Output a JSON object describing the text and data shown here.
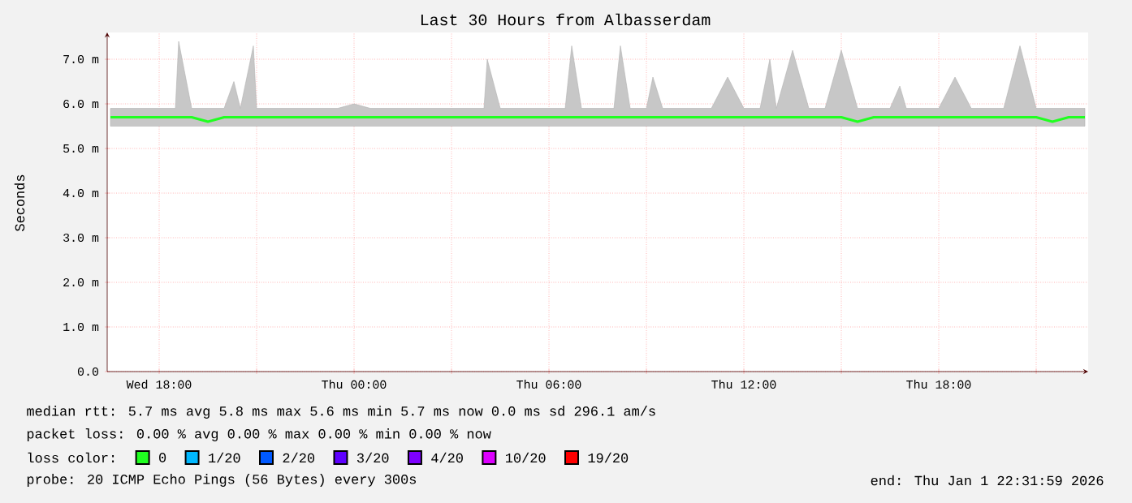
{
  "chart_data": {
    "type": "line",
    "title": "Last 30 Hours from Albasserdam",
    "ylabel": "Seconds",
    "x": [
      "2025-12-31T16:30",
      "2025-12-31T17:00",
      "2025-12-31T17:30",
      "2025-12-31T18:00",
      "2025-12-31T18:30",
      "2025-12-31T18:36",
      "2025-12-31T19:00",
      "2025-12-31T19:30",
      "2025-12-31T20:00",
      "2025-12-31T20:18",
      "2025-12-31T20:30",
      "2025-12-31T20:54",
      "2025-12-31T21:00",
      "2025-12-31T21:30",
      "2025-12-31T22:00",
      "2025-12-31T22:30",
      "2025-12-31T23:00",
      "2025-12-31T23:30",
      "2026-01-01T00:00",
      "2026-01-01T00:30",
      "2026-01-01T01:00",
      "2026-01-01T01:30",
      "2026-01-01T02:00",
      "2026-01-01T02:30",
      "2026-01-01T03:00",
      "2026-01-01T03:30",
      "2026-01-01T04:00",
      "2026-01-01T04:06",
      "2026-01-01T04:30",
      "2026-01-01T05:00",
      "2026-01-01T05:30",
      "2026-01-01T06:00",
      "2026-01-01T06:30",
      "2026-01-01T06:42",
      "2026-01-01T07:00",
      "2026-01-01T07:30",
      "2026-01-01T08:00",
      "2026-01-01T08:12",
      "2026-01-01T08:30",
      "2026-01-01T09:00",
      "2026-01-01T09:12",
      "2026-01-01T09:30",
      "2026-01-01T10:00",
      "2026-01-01T10:30",
      "2026-01-01T11:00",
      "2026-01-01T11:30",
      "2026-01-01T12:00",
      "2026-01-01T12:30",
      "2026-01-01T12:48",
      "2026-01-01T13:00",
      "2026-01-01T13:30",
      "2026-01-01T14:00",
      "2026-01-01T14:30",
      "2026-01-01T15:00",
      "2026-01-01T15:30",
      "2026-01-01T16:00",
      "2026-01-01T16:30",
      "2026-01-01T16:48",
      "2026-01-01T17:00",
      "2026-01-01T17:30",
      "2026-01-01T18:00",
      "2026-01-01T18:30",
      "2026-01-01T19:00",
      "2026-01-01T19:30",
      "2026-01-01T20:00",
      "2026-01-01T20:30",
      "2026-01-01T21:00",
      "2026-01-01T21:30",
      "2026-01-01T22:00",
      "2026-01-01T22:30"
    ],
    "xlim": [
      "2025-12-31T16:24",
      "2026-01-01T22:36"
    ],
    "xticks": [
      {
        "value": "2025-12-31T18:00",
        "label": "Wed 18:00"
      },
      {
        "value": "2025-12-31T21:00",
        "label": null
      },
      {
        "value": "2026-01-01T00:00",
        "label": "Thu 00:00"
      },
      {
        "value": "2026-01-01T03:00",
        "label": null
      },
      {
        "value": "2026-01-01T06:00",
        "label": "Thu 06:00"
      },
      {
        "value": "2026-01-01T09:00",
        "label": null
      },
      {
        "value": "2026-01-01T12:00",
        "label": "Thu 12:00"
      },
      {
        "value": "2026-01-01T15:00",
        "label": null
      },
      {
        "value": "2026-01-01T18:00",
        "label": "Thu 18:00"
      },
      {
        "value": "2026-01-01T21:00",
        "label": null
      }
    ],
    "ylim": [
      0,
      7.6
    ],
    "yticks": [
      {
        "value": 0,
        "label": "0.0"
      },
      {
        "value": 1,
        "label": "1.0 m"
      },
      {
        "value": 2,
        "label": "2.0 m"
      },
      {
        "value": 3,
        "label": "3.0 m"
      },
      {
        "value": 4,
        "label": "4.0 m"
      },
      {
        "value": 5,
        "label": "5.0 m"
      },
      {
        "value": 6,
        "label": "6.0 m"
      },
      {
        "value": 7,
        "label": "7.0 m"
      }
    ],
    "grid": true,
    "legend": "bottom",
    "legend_title": "loss color:",
    "series": [
      {
        "name": "0",
        "color": "#20ff20",
        "values": [
          5.7,
          5.7,
          5.7,
          5.7,
          5.7,
          5.7,
          5.7,
          5.6,
          5.7,
          5.7,
          5.7,
          5.7,
          5.7,
          5.7,
          5.7,
          5.7,
          5.7,
          5.7,
          5.7,
          5.7,
          5.7,
          5.7,
          5.7,
          5.7,
          5.7,
          5.7,
          5.7,
          5.7,
          5.7,
          5.7,
          5.7,
          5.7,
          5.7,
          5.7,
          5.7,
          5.7,
          5.7,
          5.7,
          5.7,
          5.7,
          5.7,
          5.7,
          5.7,
          5.7,
          5.7,
          5.7,
          5.7,
          5.7,
          5.7,
          5.7,
          5.7,
          5.7,
          5.7,
          5.7,
          5.6,
          5.7,
          5.7,
          5.7,
          5.7,
          5.7,
          5.7,
          5.7,
          5.7,
          5.7,
          5.7,
          5.7,
          5.7,
          5.6,
          5.7,
          5.7
        ],
        "lower": [
          5.5,
          5.5,
          5.5,
          5.5,
          5.5,
          5.5,
          5.5,
          5.5,
          5.5,
          5.5,
          5.5,
          5.5,
          5.5,
          5.5,
          5.5,
          5.5,
          5.5,
          5.5,
          5.5,
          5.5,
          5.5,
          5.5,
          5.5,
          5.5,
          5.5,
          5.5,
          5.5,
          5.5,
          5.5,
          5.5,
          5.5,
          5.5,
          5.5,
          5.5,
          5.5,
          5.5,
          5.5,
          5.5,
          5.5,
          5.5,
          5.5,
          5.5,
          5.5,
          5.5,
          5.5,
          5.5,
          5.5,
          5.5,
          5.5,
          5.5,
          5.5,
          5.5,
          5.5,
          5.5,
          5.5,
          5.5,
          5.5,
          5.5,
          5.5,
          5.5,
          5.5,
          5.5,
          5.5,
          5.5,
          5.5,
          5.5,
          5.5,
          5.5,
          5.5,
          5.5
        ],
        "upper": [
          5.9,
          5.9,
          5.9,
          5.9,
          5.9,
          7.4,
          5.9,
          5.9,
          5.9,
          6.5,
          5.9,
          7.3,
          5.9,
          5.9,
          5.9,
          5.9,
          5.9,
          5.9,
          6.0,
          5.9,
          5.9,
          5.9,
          5.9,
          5.9,
          5.9,
          5.9,
          5.9,
          7.0,
          5.9,
          5.9,
          5.9,
          5.9,
          5.9,
          7.3,
          5.9,
          5.9,
          5.9,
          7.3,
          5.9,
          5.9,
          6.6,
          5.9,
          5.9,
          5.9,
          5.9,
          6.6,
          5.9,
          5.9,
          7.0,
          5.9,
          7.2,
          5.9,
          5.9,
          7.2,
          5.9,
          5.9,
          5.9,
          6.4,
          5.9,
          5.9,
          5.9,
          6.6,
          5.9,
          5.9,
          5.9,
          7.3,
          5.9,
          5.9,
          5.9,
          5.9
        ]
      },
      {
        "name": "1/20",
        "color": "#00b8ff",
        "values": [
          null,
          null,
          null,
          null,
          null,
          null,
          null,
          null,
          null,
          null,
          null,
          null,
          null,
          null,
          null,
          null,
          null,
          null,
          null,
          null,
          null,
          null,
          null,
          null,
          null,
          null,
          null,
          null,
          null,
          null,
          null,
          null,
          null,
          null,
          null,
          null,
          null,
          null,
          null,
          null,
          null,
          null,
          null,
          null,
          null,
          null,
          null,
          null,
          null,
          null,
          null,
          null,
          null,
          null,
          null,
          null,
          null,
          null,
          null,
          null,
          null,
          null,
          null,
          null,
          null,
          null,
          null,
          null,
          null,
          null
        ]
      },
      {
        "name": "2/20",
        "color": "#0059ff",
        "values": [
          null,
          null,
          null,
          null,
          null,
          null,
          null,
          null,
          null,
          null,
          null,
          null,
          null,
          null,
          null,
          null,
          null,
          null,
          null,
          null,
          null,
          null,
          null,
          null,
          null,
          null,
          null,
          null,
          null,
          null,
          null,
          null,
          null,
          null,
          null,
          null,
          null,
          null,
          null,
          null,
          null,
          null,
          null,
          null,
          null,
          null,
          null,
          null,
          null,
          null,
          null,
          null,
          null,
          null,
          null,
          null,
          null,
          null,
          null,
          null,
          null,
          null,
          null,
          null,
          null,
          null,
          null,
          null,
          null,
          null
        ]
      },
      {
        "name": "3/20",
        "color": "#5e00ff",
        "values": [
          null,
          null,
          null,
          null,
          null,
          null,
          null,
          null,
          null,
          null,
          null,
          null,
          null,
          null,
          null,
          null,
          null,
          null,
          null,
          null,
          null,
          null,
          null,
          null,
          null,
          null,
          null,
          null,
          null,
          null,
          null,
          null,
          null,
          null,
          null,
          null,
          null,
          null,
          null,
          null,
          null,
          null,
          null,
          null,
          null,
          null,
          null,
          null,
          null,
          null,
          null,
          null,
          null,
          null,
          null,
          null,
          null,
          null,
          null,
          null,
          null,
          null,
          null,
          null,
          null,
          null,
          null,
          null,
          null,
          null
        ]
      },
      {
        "name": "4/20",
        "color": "#7e00ff",
        "values": [
          null,
          null,
          null,
          null,
          null,
          null,
          null,
          null,
          null,
          null,
          null,
          null,
          null,
          null,
          null,
          null,
          null,
          null,
          null,
          null,
          null,
          null,
          null,
          null,
          null,
          null,
          null,
          null,
          null,
          null,
          null,
          null,
          null,
          null,
          null,
          null,
          null,
          null,
          null,
          null,
          null,
          null,
          null,
          null,
          null,
          null,
          null,
          null,
          null,
          null,
          null,
          null,
          null,
          null,
          null,
          null,
          null,
          null,
          null,
          null,
          null,
          null,
          null,
          null,
          null,
          null,
          null,
          null,
          null,
          null
        ]
      },
      {
        "name": "10/20",
        "color": "#dd00ff",
        "values": [
          null,
          null,
          null,
          null,
          null,
          null,
          null,
          null,
          null,
          null,
          null,
          null,
          null,
          null,
          null,
          null,
          null,
          null,
          null,
          null,
          null,
          null,
          null,
          null,
          null,
          null,
          null,
          null,
          null,
          null,
          null,
          null,
          null,
          null,
          null,
          null,
          null,
          null,
          null,
          null,
          null,
          null,
          null,
          null,
          null,
          null,
          null,
          null,
          null,
          null,
          null,
          null,
          null,
          null,
          null,
          null,
          null,
          null,
          null,
          null,
          null,
          null,
          null,
          null,
          null,
          null,
          null,
          null,
          null,
          null
        ]
      },
      {
        "name": "19/20",
        "color": "#ff0000",
        "values": [
          null,
          null,
          null,
          null,
          null,
          null,
          null,
          null,
          null,
          null,
          null,
          null,
          null,
          null,
          null,
          null,
          null,
          null,
          null,
          null,
          null,
          null,
          null,
          null,
          null,
          null,
          null,
          null,
          null,
          null,
          null,
          null,
          null,
          null,
          null,
          null,
          null,
          null,
          null,
          null,
          null,
          null,
          null,
          null,
          null,
          null,
          null,
          null,
          null,
          null,
          null,
          null,
          null,
          null,
          null,
          null,
          null,
          null,
          null,
          null,
          null,
          null,
          null,
          null,
          null,
          null,
          null,
          null,
          null,
          null
        ]
      }
    ],
    "annotations": [
      "median rtt: 5.7 ms avg 5.8 ms max 5.6 ms min 5.7 ms now 0.0 ms sd 296.1 am/s",
      "packet loss: 0.00 % avg 0.00 % max 0.00 % min 0.00 % now",
      "probe: 20 ICMP Echo Pings (56 Bytes) every 300s",
      "end: Thu Jan 1 22:31:59 2026"
    ]
  }
}
